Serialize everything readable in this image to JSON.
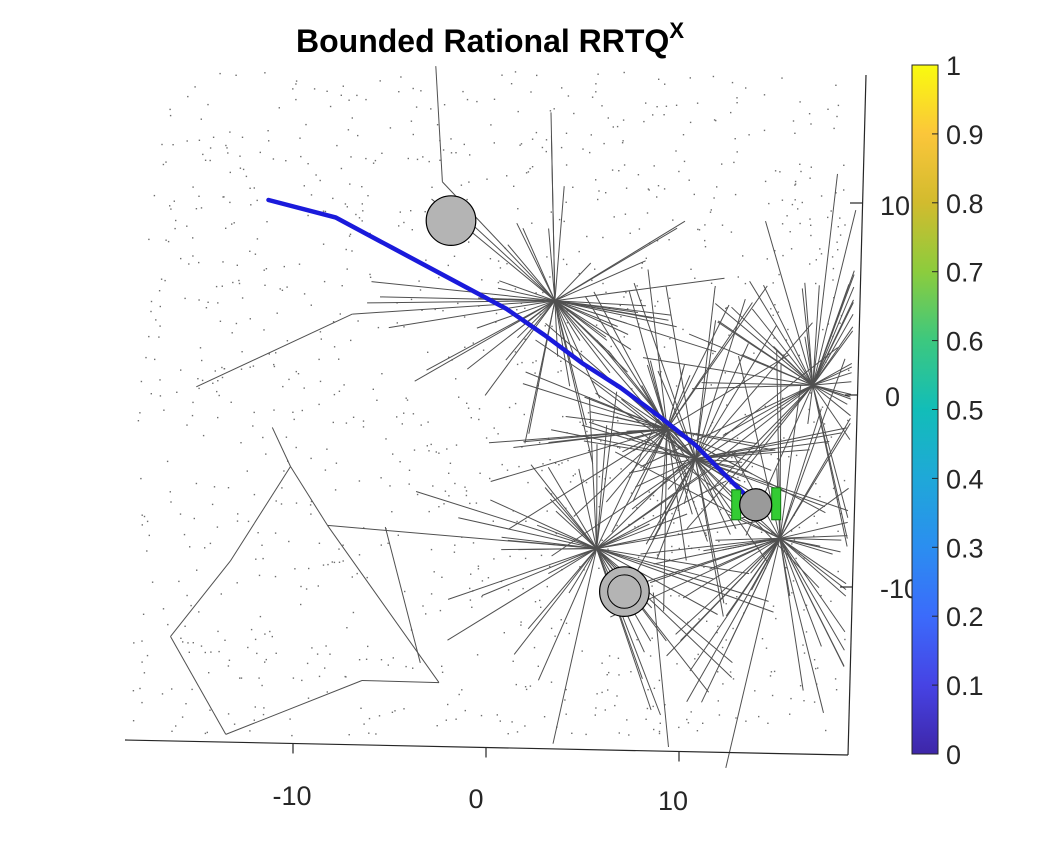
{
  "chart_data": {
    "type": "scatter",
    "title": "Bounded Rational RRTQ",
    "title_superscript": "X",
    "xlabel": "",
    "ylabel": "",
    "x_ticks": [
      "-10",
      "0",
      "10"
    ],
    "y_ticks": [
      "10",
      "0",
      "-10"
    ],
    "xlim": [
      -19,
      19
    ],
    "ylim": [
      -19,
      19
    ],
    "grid": false,
    "colorbar": {
      "ticks": [
        "0",
        "0.1",
        "0.2",
        "0.3",
        "0.4",
        "0.5",
        "0.6",
        "0.7",
        "0.8",
        "0.9",
        "1"
      ],
      "range": [
        0,
        1
      ],
      "colormap": "parula"
    },
    "trajectory": {
      "color": "#1a1adb",
      "points": [
        [
          -11.5,
          9.8
        ],
        [
          -8,
          9
        ],
        [
          -5,
          7.5
        ],
        [
          -2,
          6
        ],
        [
          1,
          4.5
        ],
        [
          3,
          3.2
        ],
        [
          5,
          1.8
        ],
        [
          7,
          0.6
        ],
        [
          9,
          -0.8
        ],
        [
          11,
          -2.3
        ],
        [
          13,
          -4.2
        ],
        [
          14.2,
          -5.3
        ]
      ]
    },
    "obstacles": [
      {
        "x": -2.0,
        "y": 9.0,
        "r": 1.4,
        "fill": "#b4b4b4"
      },
      {
        "x": 7.5,
        "y": -10.0,
        "r": 1.4,
        "fill": "#b4b4b4"
      },
      {
        "x": 14.2,
        "y": -5.3,
        "r": 0.9,
        "fill": "#999999"
      }
    ],
    "robot": {
      "x": 14.2,
      "y": -5.3,
      "color": "#33cc33"
    },
    "tree_hubs": [
      {
        "x": 3.5,
        "y": 5.0
      },
      {
        "x": 6.0,
        "y": -7.8
      },
      {
        "x": 11.0,
        "y": -3.0
      },
      {
        "x": 15.5,
        "y": -7.0
      },
      {
        "x": 17.0,
        "y": 1.0
      },
      {
        "x": 9.5,
        "y": -1.5
      }
    ],
    "colors": {
      "tree": "#505050",
      "samples": "#6e6e6e",
      "axis": "#262626"
    }
  }
}
